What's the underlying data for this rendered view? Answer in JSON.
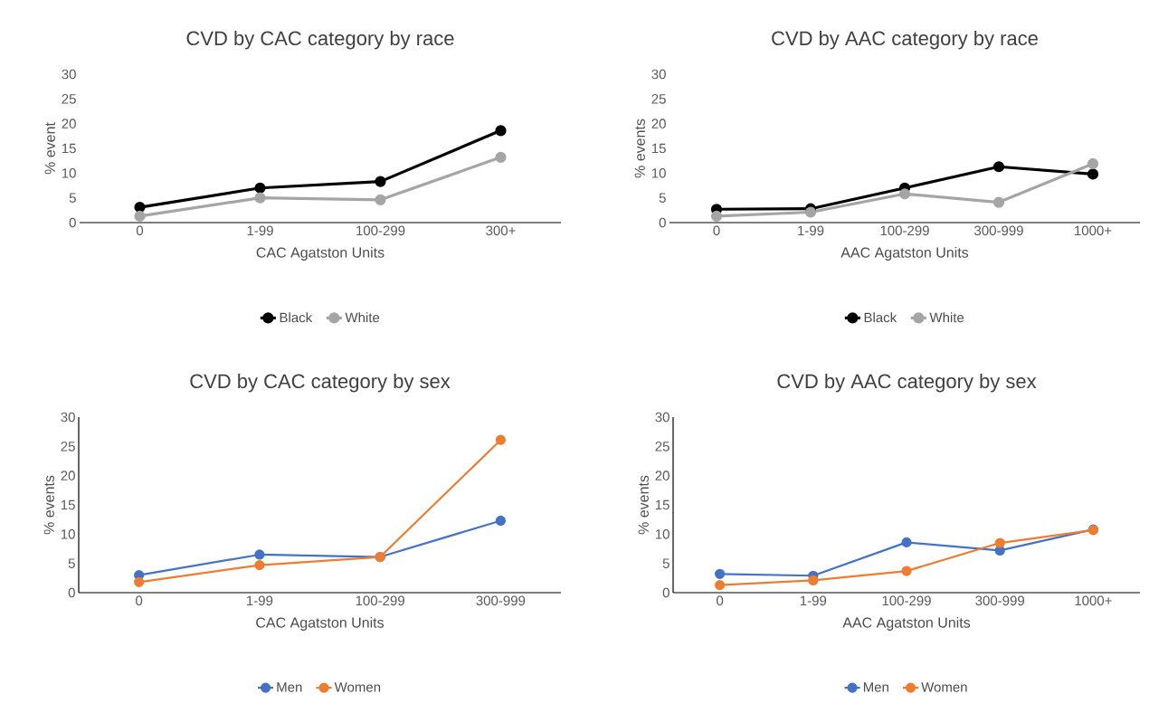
{
  "chart_data": [
    {
      "type": "line",
      "title": "CVD by CAC category by race",
      "xlabel": "CAC Agatston Units",
      "ylabel": "% event",
      "categories": [
        "0",
        "1-99",
        "100-299",
        "300+"
      ],
      "series": [
        {
          "name": "Black",
          "color": "#000000",
          "values": [
            3.1,
            7.0,
            8.3,
            18.6
          ]
        },
        {
          "name": "White",
          "color": "#a5a5a5",
          "values": [
            1.3,
            5.0,
            4.6,
            13.2
          ]
        }
      ],
      "ylim": [
        0,
        30
      ],
      "yticks": [
        0,
        5,
        10,
        15,
        20,
        25,
        30
      ],
      "legend": "bottom",
      "marker": "circle",
      "grid": false
    },
    {
      "type": "line",
      "title": "CVD by AAC category by race",
      "xlabel": "AAC Agatston Units",
      "ylabel": "% events",
      "categories": [
        "0",
        "1-99",
        "100-299",
        "300-999",
        "1000+"
      ],
      "series": [
        {
          "name": "Black",
          "color": "#000000",
          "values": [
            2.7,
            2.8,
            7.0,
            11.3,
            9.8
          ]
        },
        {
          "name": "White",
          "color": "#a5a5a5",
          "values": [
            1.3,
            2.1,
            5.8,
            4.1,
            11.9
          ]
        }
      ],
      "ylim": [
        0,
        30
      ],
      "yticks": [
        0,
        5,
        10,
        15,
        20,
        25,
        30
      ],
      "legend": "bottom",
      "marker": "circle",
      "grid": false
    },
    {
      "type": "line",
      "title": "CVD by CAC category by sex",
      "xlabel": "CAC Agatston Units",
      "ylabel": "% events",
      "categories": [
        "0",
        "1-99",
        "100-299",
        "300-999"
      ],
      "series": [
        {
          "name": "Men",
          "color": "#4472c4",
          "values": [
            3.0,
            6.5,
            6.1,
            12.3
          ]
        },
        {
          "name": "Women",
          "color": "#ed7d31",
          "values": [
            1.8,
            4.7,
            6.1,
            26.1
          ]
        }
      ],
      "ylim": [
        0,
        30
      ],
      "yticks": [
        0,
        5,
        10,
        15,
        20,
        25,
        30
      ],
      "legend": "bottom",
      "marker": "circle",
      "grid": false
    },
    {
      "type": "line",
      "title": "CVD by AAC category by sex",
      "xlabel": "AAC Agatston Units",
      "ylabel": "% events",
      "categories": [
        "0",
        "1-99",
        "100-299",
        "300-999",
        "1000+"
      ],
      "series": [
        {
          "name": "Men",
          "color": "#4472c4",
          "values": [
            3.2,
            2.9,
            8.6,
            7.2,
            10.8
          ]
        },
        {
          "name": "Women",
          "color": "#ed7d31",
          "values": [
            1.3,
            2.1,
            3.7,
            8.5,
            10.7
          ]
        }
      ],
      "ylim": [
        0,
        30
      ],
      "yticks": [
        0,
        5,
        10,
        15,
        20,
        25,
        30
      ],
      "legend": "bottom",
      "marker": "circle",
      "grid": false
    }
  ]
}
